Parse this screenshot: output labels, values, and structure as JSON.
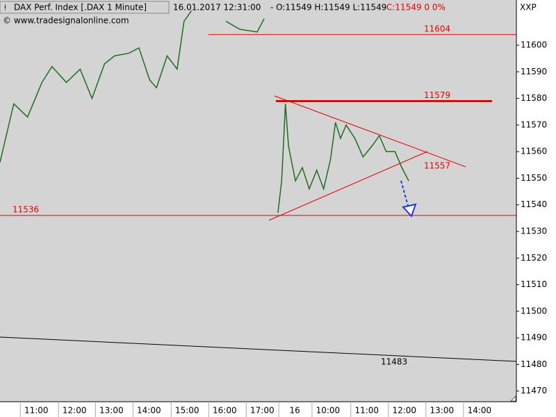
{
  "chart_data": {
    "type": "line",
    "title": "DAX Perf. Index [.DAX  1 Minute]",
    "datetime": "16.01.2017 12:31:00",
    "quote": "- O:11549 H:11549 L:11549",
    "change": "C:11549 0 0%",
    "source": "© www.tradesignalonline.com",
    "symbol": "XXP",
    "x": [
      0,
      22,
      44,
      67,
      83,
      106,
      128,
      147,
      167,
      183,
      206,
      222,
      239,
      250,
      267,
      283,
      294,
      306,
      330,
      361,
      383,
      411,
      422,
      433,
      444,
      450,
      456,
      461,
      472,
      483,
      494,
      506,
      517,
      528,
      536,
      544,
      553,
      567,
      580,
      594,
      606,
      617,
      631,
      642,
      653
    ],
    "values": [
      11556,
      11578,
      11573,
      11586,
      11592,
      11586,
      11591,
      11580,
      11593,
      11596,
      11597,
      11599,
      11587,
      11584,
      11596,
      11591,
      11609,
      11613,
      null,
      11609,
      11606,
      11605,
      11610,
      null,
      11537,
      11549,
      11578,
      11562,
      11549,
      11554,
      11546,
      11553,
      11546,
      11557,
      11571,
      11565,
      11570,
      11565,
      11558,
      11562,
      11566,
      11560,
      11560,
      11554,
      11549
    ],
    "color": "#1f6b1f",
    "xlim": [
      0,
      825
    ],
    "xticks": [
      {
        "value": 58,
        "label": "11:00"
      },
      {
        "value": 119,
        "label": "12:00"
      },
      {
        "value": 178,
        "label": "13:00"
      },
      {
        "value": 238,
        "label": "14:00"
      },
      {
        "value": 299,
        "label": "15:00"
      },
      {
        "value": 359,
        "label": "16:00"
      },
      {
        "value": 419,
        "label": "17:00"
      },
      {
        "value": 471,
        "label": "16"
      },
      {
        "value": 524,
        "label": "10:00"
      },
      {
        "value": 586,
        "label": "11:00"
      },
      {
        "value": 646,
        "label": "12:00"
      },
      {
        "value": 706,
        "label": "13:00"
      },
      {
        "value": 766,
        "label": "14:00"
      }
    ],
    "ylim": [
      11466,
      11617
    ],
    "yticks": [
      11470,
      11480,
      11490,
      11500,
      11510,
      11520,
      11530,
      11540,
      11550,
      11560,
      11570,
      11580,
      11590,
      11600
    ],
    "hlines": [
      11604,
      11579,
      11536
    ],
    "hline_color": "#e00000",
    "breakout_level": 11557,
    "trendline_level": 11483
  }
}
